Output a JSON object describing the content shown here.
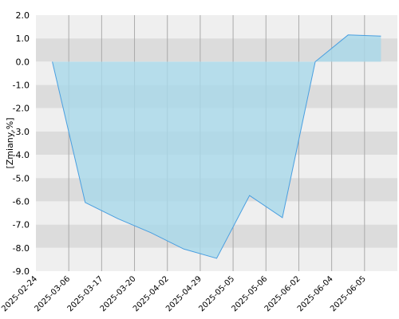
{
  "chart_data": {
    "type": "area",
    "ylabel": "[Zmiany,%]",
    "ylim": [
      -9,
      2
    ],
    "yticks": [
      "2.0",
      "1.0",
      "0.0",
      "-1.0",
      "-2.0",
      "-3.0",
      "-4.0",
      "-5.0",
      "-6.0",
      "-7.0",
      "-8.0",
      "-9.0"
    ],
    "xticks": [
      "2025-02-24",
      "2025-03-06",
      "2025-03-17",
      "2025-03-20",
      "2025-04-02",
      "2025-04-29",
      "2025-05-05",
      "2025-05-06",
      "2025-06-02",
      "2025-06-04",
      "2025-06-05"
    ],
    "grid": true,
    "series": [
      {
        "x": [
          0.5,
          1.5,
          2.5,
          3.5,
          4.5,
          5.5,
          6.5,
          7.5,
          8.5,
          9.5,
          10.5
        ],
        "values": [
          0.0,
          -6.05,
          -6.75,
          -7.35,
          -8.05,
          -8.45,
          -5.75,
          -6.7,
          0.0,
          1.15,
          1.1
        ]
      }
    ],
    "colors": {
      "fill": "#a8d8ea",
      "line": "#4a9fe0",
      "band_light": "#efefef",
      "band_dark": "#dcdcdc",
      "gridline": "#aaaaaa"
    }
  }
}
